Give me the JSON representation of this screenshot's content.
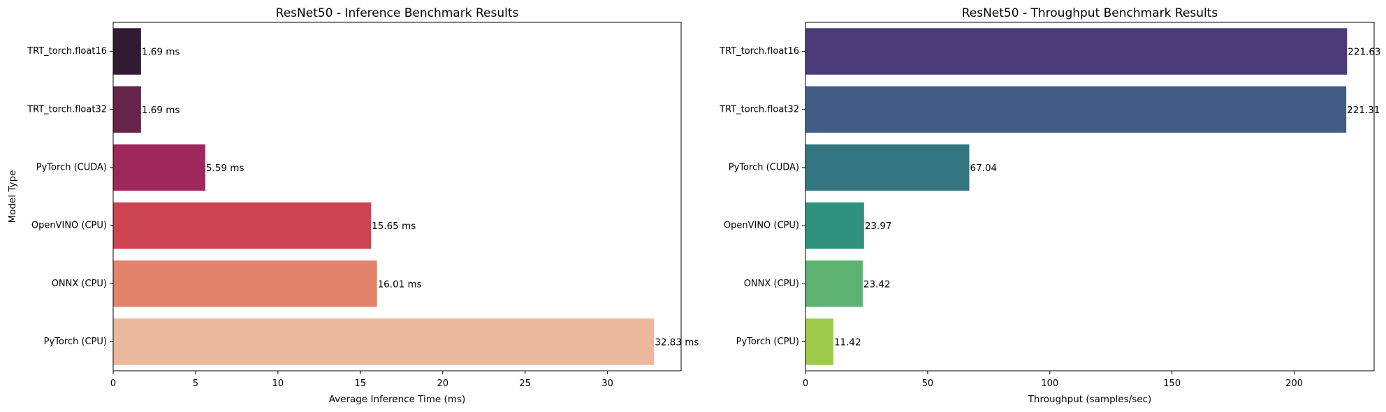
{
  "chart_data": [
    {
      "id": "inference",
      "type": "bar",
      "orientation": "horizontal",
      "title": "ResNet50 - Inference Benchmark Results",
      "xlabel": "Average Inference Time (ms)",
      "ylabel": "Model Type",
      "categories": [
        "TRT_torch.float16",
        "TRT_torch.float32",
        "PyTorch (CUDA)",
        "OpenVINO (CPU)",
        "ONNX (CPU)",
        "PyTorch (CPU)"
      ],
      "values": [
        1.69,
        1.69,
        5.59,
        15.65,
        16.01,
        32.83
      ],
      "data_labels": [
        "1.69 ms",
        "1.69 ms",
        "5.59 ms",
        "15.65 ms",
        "16.01 ms",
        "32.83 ms"
      ],
      "colors": [
        "#311b33",
        "#662548",
        "#9e2859",
        "#cc4451",
        "#e2826a",
        "#eab89c"
      ],
      "xlim": [
        0,
        34.47
      ],
      "xticks": [
        0,
        5,
        10,
        15,
        20,
        25,
        30
      ],
      "grid": false
    },
    {
      "id": "throughput",
      "type": "bar",
      "orientation": "horizontal",
      "title": "ResNet50 - Throughput Benchmark Results",
      "xlabel": "Throughput (samples/sec)",
      "ylabel": "",
      "categories": [
        "TRT_torch.float16",
        "TRT_torch.float32",
        "PyTorch (CUDA)",
        "OpenVINO (CPU)",
        "ONNX (CPU)",
        "PyTorch (CPU)"
      ],
      "values": [
        221.63,
        221.31,
        67.04,
        23.97,
        23.42,
        11.42
      ],
      "data_labels": [
        "221.63",
        "221.31",
        "67.04",
        "23.97",
        "23.42",
        "11.42"
      ],
      "colors": [
        "#4a3a75",
        "#425d85",
        "#33767f",
        "#2f917d",
        "#5db271",
        "#9ec94b"
      ],
      "xlim": [
        0,
        232.7
      ],
      "xticks": [
        0,
        50,
        100,
        150,
        200
      ],
      "grid": false
    }
  ]
}
